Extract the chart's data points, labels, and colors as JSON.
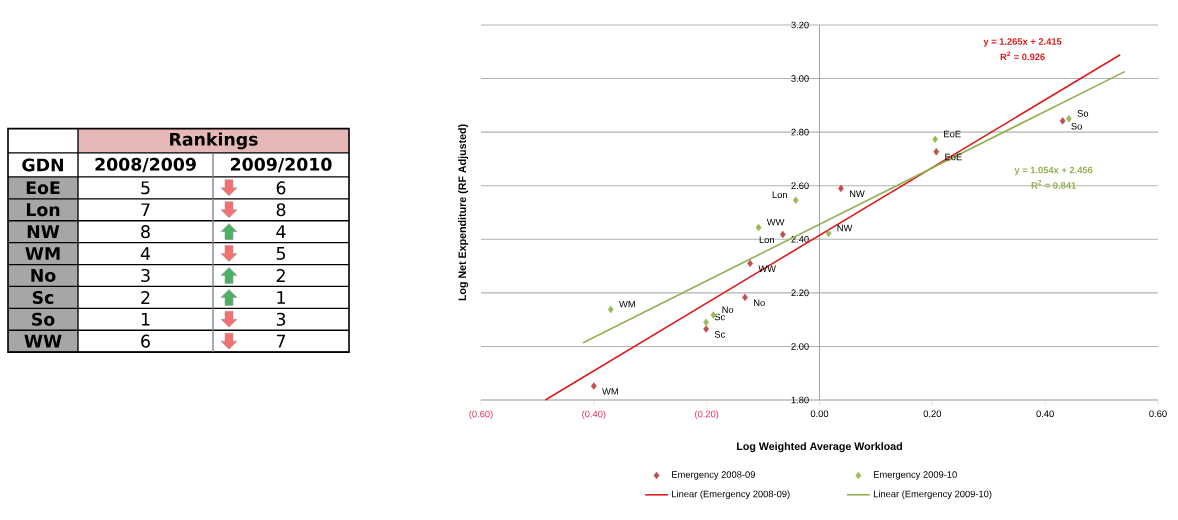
{
  "chart_data": [
    {
      "type": "other",
      "title": "Rankings",
      "ylabel": "GDN",
      "categories": [
        "EoE",
        "Lon",
        "NW",
        "WM",
        "No",
        "Sc",
        "So",
        "WW"
      ],
      "series": [
        {
          "name": "2008/2009",
          "values": [
            5,
            7,
            8,
            4,
            3,
            2,
            1,
            6
          ]
        },
        {
          "name": "2009/2010",
          "values": [
            6,
            8,
            4,
            5,
            2,
            1,
            3,
            7
          ]
        }
      ],
      "data_labels": true
    },
    {
      "type": "scatter",
      "xlabel": "Log Weighted Average Workload",
      "ylabel": "Log Net Expenditure (RF Adjusted)",
      "xlim": [
        -0.6,
        0.6
      ],
      "ylim": [
        1.8,
        3.2
      ],
      "xticks": [
        {
          "value": -0.6,
          "label": "(0.60)"
        },
        {
          "value": -0.4,
          "label": "(0.40)"
        },
        {
          "value": -0.2,
          "label": "(0.20)"
        },
        {
          "value": 0,
          "label": "0.00"
        },
        {
          "value": 0.2,
          "label": "0.20"
        },
        {
          "value": 0.4,
          "label": "0.40"
        },
        {
          "value": 0.6,
          "label": "0.60"
        }
      ],
      "yticks": [
        {
          "value": 1.8,
          "label": "1.80"
        },
        {
          "value": 2.0,
          "label": "2.00"
        },
        {
          "value": 2.2,
          "label": "2.20"
        },
        {
          "value": 2.4,
          "label": "2.40"
        },
        {
          "value": 2.6,
          "label": "2.60"
        },
        {
          "value": 2.8,
          "label": "2.80"
        },
        {
          "value": 3.0,
          "label": "3.00"
        },
        {
          "value": 3.2,
          "label": "3.20"
        }
      ],
      "grid": "y",
      "legend": "bottom",
      "marker": "diamond",
      "series": [
        {
          "name": "Emergency 2008-09",
          "color": "#c0504d",
          "x": [
            0.207,
            -0.065,
            0.038,
            -0.4,
            -0.132,
            -0.201,
            0.431,
            -0.123
          ],
          "values": [
            2.727,
            2.418,
            2.59,
            1.852,
            2.183,
            2.065,
            2.842,
            2.31
          ],
          "value_labels": [
            "EoE",
            "Lon",
            "NW",
            "WM",
            "No",
            "Sc",
            "So",
            "WW"
          ]
        },
        {
          "name": "Emergency 2009-10",
          "color": "#9bbb59",
          "x": [
            0.205,
            -0.042,
            0.016,
            -0.37,
            -0.188,
            -0.201,
            0.442,
            -0.108
          ],
          "values": [
            2.773,
            2.546,
            2.422,
            2.138,
            2.117,
            2.09,
            2.85,
            2.444
          ],
          "value_labels": [
            "EoE",
            "Lon",
            "NW",
            "WM",
            "No",
            "Sc",
            "So",
            "WW"
          ]
        },
        {
          "name": "Linear (Emergency 2008-09)",
          "type": "line",
          "marker": "none",
          "color": "#dd1c1c",
          "x": [
            -0.486,
            0.533
          ],
          "values": [
            1.8,
            3.089
          ]
        },
        {
          "name": "Linear (Emergency 2009-10)",
          "type": "line",
          "marker": "none",
          "color": "#92b050",
          "x": [
            -0.419,
            0.541
          ],
          "values": [
            2.014,
            3.026
          ]
        }
      ],
      "annotations": [
        "y = 1.265x + 2.415",
        "R$^{2}$ = 0.926",
        "y = 1.054x + 2.456",
        "R$^{2}$ = 0.841"
      ]
    }
  ]
}
